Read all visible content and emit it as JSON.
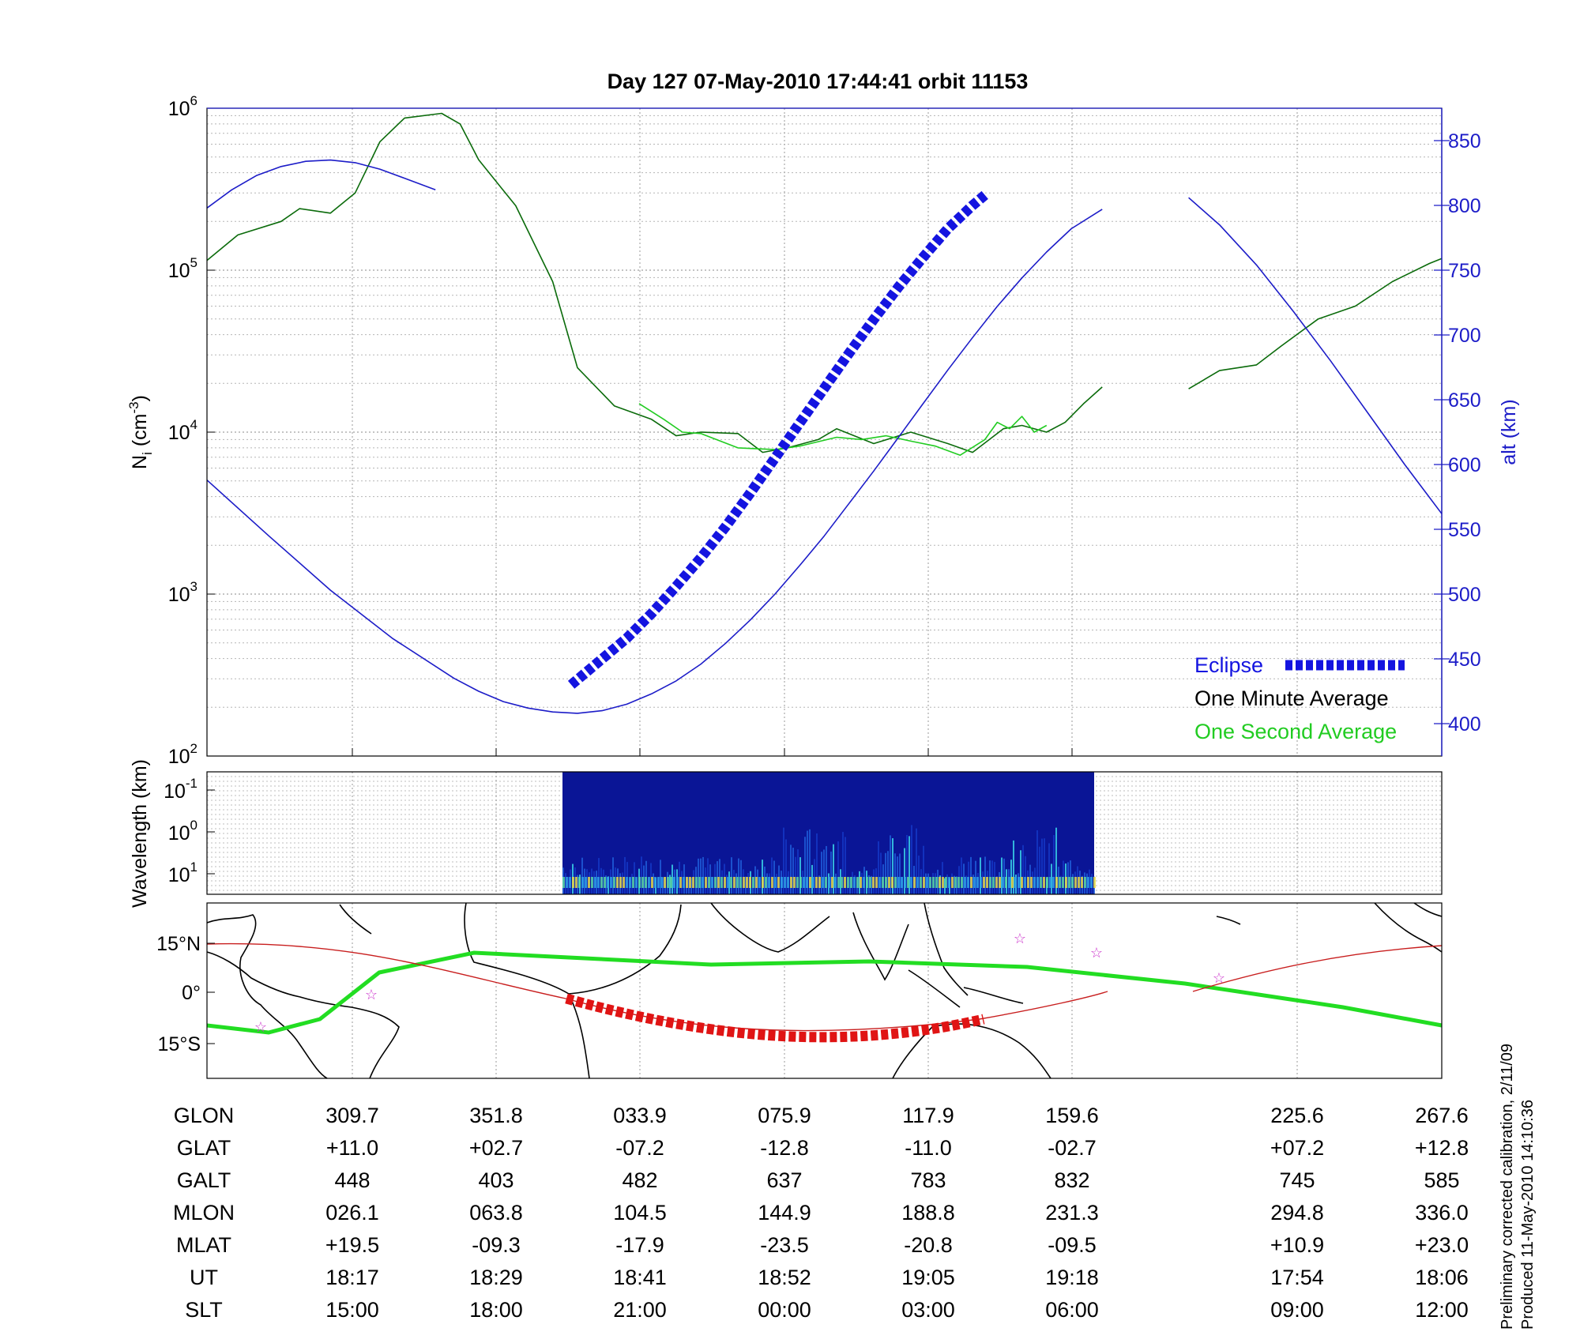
{
  "chart_data": [
    {
      "panel": "density",
      "type": "line",
      "title": "Day 127  07-May-2010 17:44:41   orbit 11153",
      "ylabel_left": "N",
      "ylabel_left_sub": "i",
      "ylabel_left_unit": " (cm",
      "ylabel_left_exp": "-3",
      "ylabel_left_close": ")",
      "ylabel_right": "alt (km)",
      "yscale_left": "log",
      "ylim_left": [
        100,
        1000000
      ],
      "yticks_left": [
        {
          "base": "10",
          "exp": "2",
          "value": 100
        },
        {
          "base": "10",
          "exp": "3",
          "value": 1000
        },
        {
          "base": "10",
          "exp": "4",
          "value": 10000
        },
        {
          "base": "10",
          "exp": "5",
          "value": 100000
        },
        {
          "base": "10",
          "exp": "6",
          "value": 1000000
        }
      ],
      "ylim_right": [
        375,
        875
      ],
      "yticks_right": [
        "400",
        "450",
        "500",
        "550",
        "600",
        "650",
        "700",
        "750",
        "800",
        "850"
      ],
      "grid": true,
      "legend": "bottom-right",
      "series": [
        {
          "name": "One Minute Average",
          "color": "#0b6b0b",
          "x": [
            0,
            2.5,
            6,
            7.5,
            10,
            12,
            14,
            16,
            19,
            20.5,
            22,
            25,
            28,
            30,
            33,
            36,
            38,
            40,
            43,
            45,
            47,
            49.5,
            51,
            54,
            57,
            60,
            62,
            64.5,
            66,
            68,
            69.5,
            71,
            72.5
          ],
          "values": [
            115000,
            165000,
            200000,
            240000,
            225000,
            300000,
            620000,
            870000,
            930000,
            800000,
            480000,
            250000,
            85000,
            25000,
            14500,
            12000,
            9500,
            10000,
            9800,
            7500,
            8000,
            9000,
            10500,
            8500,
            10000,
            8500,
            7500,
            10500,
            11000,
            10000,
            11500,
            15000,
            19000
          ]
        },
        {
          "name": "One Minute Average",
          "color": "#0b6b0b",
          "x": [
            79.5,
            82,
            85,
            87,
            90,
            93,
            96,
            99,
            100
          ],
          "values": [
            18500,
            24000,
            26000,
            34000,
            50000,
            60000,
            85000,
            110000,
            118000
          ]
        },
        {
          "name": "One Second Average",
          "color": "#22cc22",
          "x": [
            35,
            37,
            38.5,
            40,
            43,
            46,
            48,
            51,
            53,
            55,
            57,
            59,
            61,
            63,
            64,
            65,
            66,
            67,
            68
          ],
          "values": [
            15000,
            12000,
            10000,
            9800,
            8000,
            7800,
            8200,
            9300,
            9000,
            9500,
            8800,
            8200,
            7200,
            9000,
            11500,
            10500,
            12500,
            10000,
            11000
          ]
        },
        {
          "name": "alt",
          "axis": "right",
          "color": "#1c1cc8",
          "x": [
            0,
            5,
            10,
            15,
            20,
            22,
            24,
            26,
            28,
            30,
            32,
            34,
            36,
            38,
            40,
            42,
            44,
            46,
            48,
            50,
            52,
            54,
            56,
            58,
            60,
            62,
            64,
            66,
            68,
            70,
            72.5
          ],
          "values": [
            588,
            545,
            503,
            466,
            435,
            425,
            417,
            412,
            409,
            408,
            410,
            415,
            423,
            433,
            446,
            462,
            480,
            500,
            522,
            545,
            570,
            595,
            621,
            647,
            673,
            698,
            722,
            744,
            764,
            782,
            797
          ]
        },
        {
          "name": "alt",
          "axis": "right",
          "color": "#1c1cc8",
          "x": [
            0,
            2,
            4,
            6,
            8,
            10,
            12,
            14,
            16,
            18.5
          ],
          "values": [
            798,
            812,
            823,
            830,
            834,
            835,
            833,
            828,
            821,
            812
          ]
        },
        {
          "name": "alt",
          "axis": "right",
          "color": "#1c1cc8",
          "x": [
            79.5,
            82,
            85,
            88,
            91,
            94,
            97,
            100
          ],
          "values": [
            806,
            785,
            754,
            718,
            680,
            640,
            600,
            562
          ]
        },
        {
          "name": "Eclipse",
          "axis": "right",
          "style": "thick-dashed",
          "color": "#1414e0",
          "x": [
            29.5,
            32,
            34,
            36,
            38,
            40,
            42,
            44,
            46,
            48,
            50,
            52,
            54,
            56,
            58,
            60,
            62,
            63
          ],
          "values": [
            430,
            450,
            466,
            485,
            506,
            528,
            552,
            578,
            605,
            632,
            659,
            686,
            712,
            737,
            760,
            782,
            800,
            808
          ]
        }
      ],
      "legend_entries": [
        {
          "label": "Eclipse",
          "color": "#1414e0"
        },
        {
          "label": "One Minute Average",
          "color": "#000000"
        },
        {
          "label": "One Second Average",
          "color": "#22cc22"
        }
      ]
    },
    {
      "panel": "wavelength",
      "type": "heatmap",
      "ylabel": "Wavelength (km)",
      "yscale": "log",
      "yticks": [
        {
          "base": "10",
          "exp": "-1"
        },
        {
          "base": "10",
          "exp": "0"
        },
        {
          "base": "10",
          "exp": "1"
        }
      ],
      "data_range_x": [
        29,
        72
      ]
    },
    {
      "panel": "map",
      "type": "line",
      "yticks": [
        "15°N",
        "0°",
        "15°S"
      ],
      "series": [
        {
          "name": "magnetic equator",
          "color": "#22dd22"
        },
        {
          "name": "orbit track",
          "color": "#c81e1e"
        },
        {
          "name": "orbit track eclipse",
          "color": "#e01414",
          "style": "thick-dashed"
        }
      ]
    },
    {
      "panel": "table",
      "type": "table",
      "rows": [
        {
          "label": "GLON",
          "values": [
            "309.7",
            "351.8",
            "033.9",
            "075.9",
            "117.9",
            "159.6",
            "225.6",
            "267.6"
          ]
        },
        {
          "label": "GLAT",
          "values": [
            "+11.0",
            "+02.7",
            "-07.2",
            "-12.8",
            "-11.0",
            "-02.7",
            "+07.2",
            "+12.8"
          ]
        },
        {
          "label": "GALT",
          "values": [
            "448",
            "403",
            "482",
            "637",
            "783",
            "832",
            "745",
            "585"
          ]
        },
        {
          "label": "MLON",
          "values": [
            "026.1",
            "063.8",
            "104.5",
            "144.9",
            "188.8",
            "231.3",
            "294.8",
            "336.0"
          ]
        },
        {
          "label": "MLAT",
          "values": [
            "+19.5",
            "-09.3",
            "-17.9",
            "-23.5",
            "-20.8",
            "-09.5",
            "+10.9",
            "+23.0"
          ]
        },
        {
          "label": "UT",
          "values": [
            "18:17",
            "18:29",
            "18:41",
            "18:52",
            "19:05",
            "19:18",
            "17:54",
            "18:06"
          ]
        },
        {
          "label": "SLT",
          "values": [
            "15:00",
            "18:00",
            "21:00",
            "00:00",
            "03:00",
            "06:00",
            "09:00",
            "12:00"
          ]
        }
      ]
    }
  ],
  "footnote": {
    "line1": "Preliminary corrected calibration, 2/11/09",
    "line2": "Produced 11-May-2010 14:10:36"
  }
}
